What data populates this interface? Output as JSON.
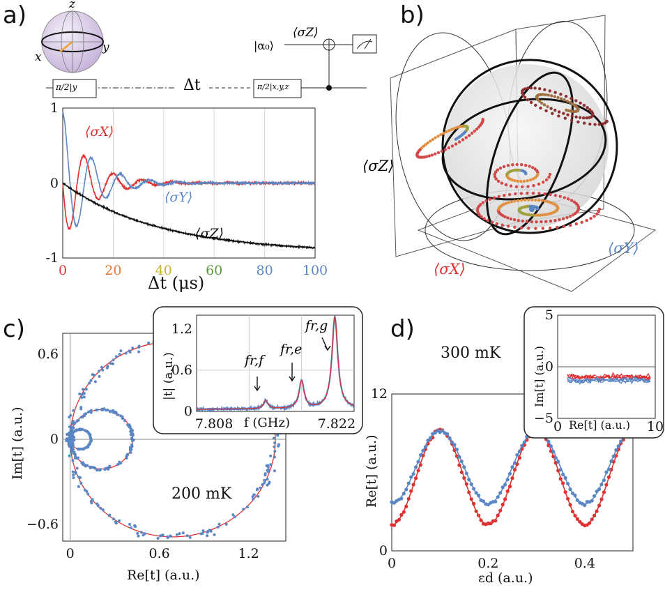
{
  "panels": {
    "a": "a)",
    "b": "b)",
    "c": "c)",
    "d": "d)"
  },
  "panel_a": {
    "bloch_axes": {
      "z": "z",
      "x": "x",
      "y": "y"
    },
    "circuit": {
      "input_state": "|α₀⟩",
      "output_label": "⟨σZ⟩",
      "gate1": "π/2|y",
      "gate2": "π/2|x,y,z",
      "delay_label": "Δt"
    },
    "series_labels": {
      "sx": "⟨σX⟩",
      "sy": "⟨σY⟩",
      "sz": "⟨σZ⟩"
    }
  },
  "panel_b": {
    "labels": {
      "sz": "⟨σZ⟩",
      "sx": "⟨σX⟩",
      "sy": "⟨σY⟩"
    }
  },
  "panel_c": {
    "temperature": "200 mK",
    "inset_peak_labels": [
      "fr,f",
      "fr,e",
      "fr,g"
    ]
  },
  "panel_d": {
    "temperature": "300 mK"
  },
  "colors": {
    "red": "#e03030",
    "blue": "#5b86c4",
    "black": "#111111",
    "tick_gradient": [
      "#e03030",
      "#e07a30",
      "#c9b030",
      "#5a9a40",
      "#5b86c4"
    ]
  },
  "chart_data": [
    {
      "type": "line",
      "id": "a",
      "xlabel": "Δt (μs)",
      "ylabel": "",
      "xlim": [
        0,
        100
      ],
      "ylim": [
        -1,
        1
      ],
      "xticks": [
        0,
        20,
        40,
        60,
        80,
        100
      ],
      "yticks": [
        -1,
        0,
        1
      ],
      "grid": true,
      "series": [
        {
          "name": "⟨σX⟩",
          "model": "damped_sine",
          "params": {
            "amp": 0.78,
            "period": 11.5,
            "tau": 11,
            "phase": 3.1416
          }
        },
        {
          "name": "⟨σY⟩",
          "model": "damped_cos",
          "params": {
            "amp": 0.95,
            "period": 11.5,
            "tau": 11
          }
        },
        {
          "name": "⟨σZ⟩",
          "model": "exp_decay",
          "params": {
            "amp": -0.93,
            "tau": 38
          }
        }
      ]
    },
    {
      "type": "scatter",
      "id": "c",
      "xlabel": "Re[t] (a.u.)",
      "ylabel": "Im[t] (a.u.)",
      "xlim": [
        -0.05,
        1.45
      ],
      "ylim": [
        -0.72,
        0.75
      ],
      "xticks": [
        0,
        0.6,
        1.2
      ],
      "yticks": [
        -0.6,
        0,
        0.6
      ],
      "circles": [
        {
          "cx": 0.69,
          "cy": 0.0,
          "r": 0.69
        },
        {
          "cx": 0.21,
          "cy": 0.0,
          "r": 0.21
        },
        {
          "cx": 0.07,
          "cy": 0.0,
          "r": 0.07
        }
      ]
    },
    {
      "type": "line",
      "id": "c-inset",
      "xlabel": "f (GHz)",
      "ylabel": "|t| (a.u.)",
      "xlim": [
        7.806,
        7.824
      ],
      "ylim": [
        0,
        1.4
      ],
      "xticks": [
        7.808,
        7.822
      ],
      "yticks": [
        0,
        0.6,
        1.2
      ],
      "peaks": [
        {
          "f": 7.8139,
          "height": 0.12,
          "width": 0.0003
        },
        {
          "f": 7.818,
          "height": 0.4,
          "width": 0.00035
        },
        {
          "f": 7.8218,
          "height": 1.33,
          "width": 0.0004
        }
      ]
    },
    {
      "type": "scatter",
      "id": "d",
      "xlabel": "εd (a.u.)",
      "ylabel": "Re[t] (a.u.)",
      "xlim": [
        0,
        0.5
      ],
      "ylim": [
        0,
        12
      ],
      "xticks": [
        0,
        0.2,
        0.4
      ],
      "yticks": [
        0,
        12
      ],
      "series": [
        {
          "name": "red",
          "mean": 5.6,
          "amp": 3.6,
          "period": 0.2,
          "phase_peak": 0.1
        },
        {
          "name": "blue",
          "mean": 6.4,
          "amp": 2.8,
          "period": 0.2,
          "phase_peak": 0.1
        }
      ]
    },
    {
      "type": "line",
      "id": "d-inset",
      "xlabel": "Re[t] (a.u.)",
      "ylabel": "Im[t] (a.u.)",
      "xlim": [
        0,
        10
      ],
      "ylim": [
        -5,
        5
      ],
      "xticks": [
        0,
        10
      ],
      "yticks": [
        -5,
        0,
        5
      ]
    }
  ]
}
